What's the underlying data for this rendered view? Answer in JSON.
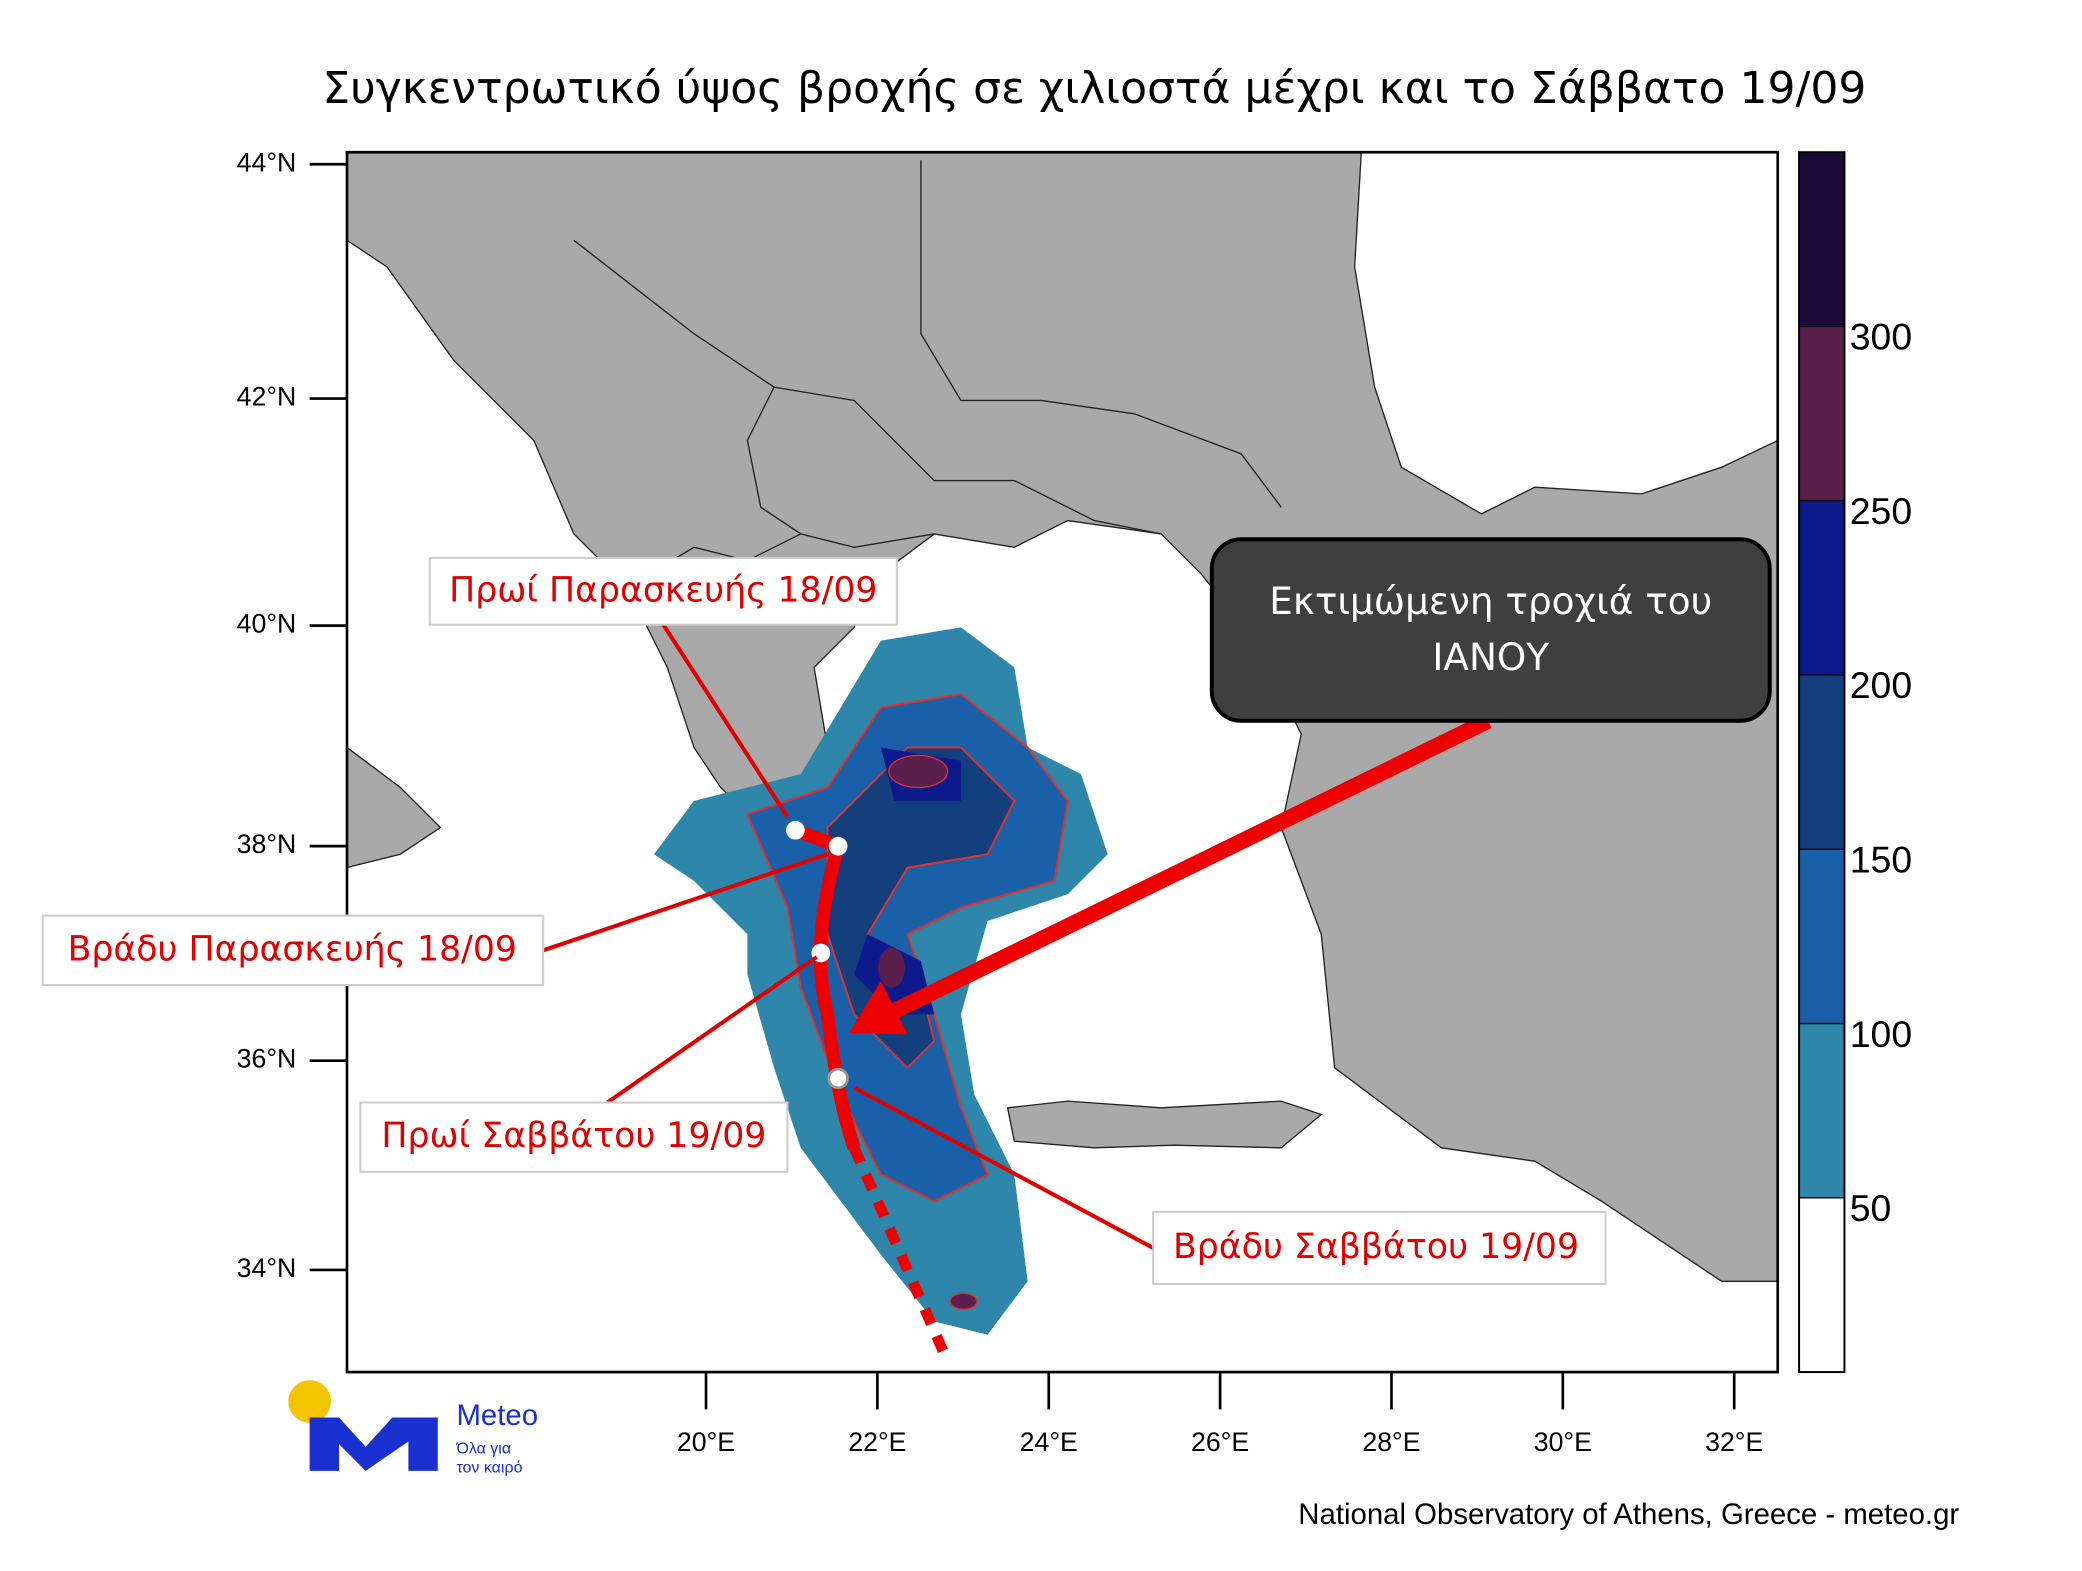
{
  "title": "Συγκεντρωτικό ύψος βροχής σε χιλιοστά μέχρι και το Σάββατο 19/09",
  "map": {
    "lat_ticks": [
      {
        "value": 44,
        "label": "44°N"
      },
      {
        "value": 42,
        "label": "42°N"
      },
      {
        "value": 40,
        "label": "40°N"
      },
      {
        "value": 38,
        "label": "38°N"
      },
      {
        "value": 36,
        "label": "36°N"
      },
      {
        "value": 34,
        "label": "34°N"
      }
    ],
    "lon_ticks": [
      {
        "value": 20,
        "label": "20°E"
      },
      {
        "value": 22,
        "label": "22°E"
      },
      {
        "value": 24,
        "label": "24°E"
      },
      {
        "value": 26,
        "label": "26°E"
      },
      {
        "value": 28,
        "label": "28°E"
      },
      {
        "value": 30,
        "label": "30°E"
      },
      {
        "value": 32,
        "label": "32°E"
      }
    ]
  },
  "colorbar": {
    "levels": [
      50,
      100,
      150,
      200,
      250,
      300
    ],
    "colors": [
      "#ffffff",
      "#2e86ab",
      "#1a60a8",
      "#133f7c",
      "#0c1a8c",
      "#5a1f4a",
      "#1e0a3a"
    ]
  },
  "annotations": [
    {
      "text": "Πρωί Παρασκευής 18/09"
    },
    {
      "text": "Βράδυ Παρασκευής 18/09"
    },
    {
      "text": "Πρωί Σαββάτου 19/09"
    },
    {
      "text": "Βράδυ Σαββάτου 19/09"
    }
  ],
  "track_box": {
    "lines": [
      "Εκτιμώμενη τροχιά του",
      "ΙΑΝΟΥ"
    ]
  },
  "logo": {
    "name": "Meteo",
    "slogan": [
      "Όλα για",
      "τον καιρό"
    ]
  },
  "credit": "National Observatory of Athens, Greece - meteo.gr"
}
